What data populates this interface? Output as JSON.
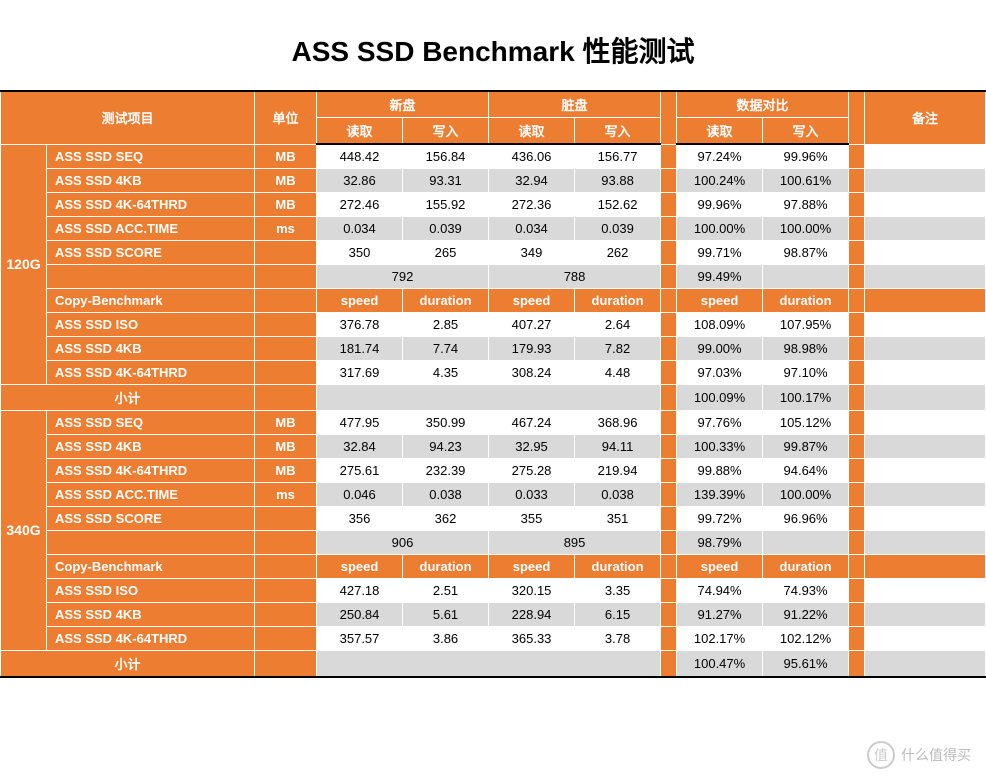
{
  "title": "ASS SSD Benchmark 性能测试",
  "colors": {
    "orange": "#ed7d31",
    "gray": "#d9d9d9",
    "white": "#ffffff",
    "black": "#000000"
  },
  "header": {
    "test_item": "测试项目",
    "unit": "单位",
    "new_disk": "新盘",
    "dirty_disk": "脏盘",
    "compare": "数据对比",
    "remark": "备注",
    "read": "读取",
    "write": "写入"
  },
  "sub_header": {
    "speed": "speed",
    "duration": "duration"
  },
  "labels": {
    "copy_benchmark": "Copy-Benchmark",
    "subtotal": "小计",
    "seq": "ASS SSD SEQ",
    "k4": "ASS SSD 4KB",
    "k4_64": "ASS SSD 4K-64THRD",
    "acc": "ASS SSD ACC.TIME",
    "score": "ASS SSD SCORE",
    "iso": "ASS SSD ISO",
    "unit_mb": "MB",
    "unit_ms": "ms"
  },
  "groups": [
    {
      "name": "120G",
      "perf": [
        {
          "label": "ASS SSD SEQ",
          "unit": "MB",
          "nr": "448.42",
          "nw": "156.84",
          "dr": "436.06",
          "dw": "156.77",
          "cr": "97.24%",
          "cw": "99.96%",
          "bg": "white"
        },
        {
          "label": "ASS SSD 4KB",
          "unit": "MB",
          "nr": "32.86",
          "nw": "93.31",
          "dr": "32.94",
          "dw": "93.88",
          "cr": "100.24%",
          "cw": "100.61%",
          "bg": "gray"
        },
        {
          "label": "ASS SSD 4K-64THRD",
          "unit": "MB",
          "nr": "272.46",
          "nw": "155.92",
          "dr": "272.36",
          "dw": "152.62",
          "cr": "99.96%",
          "cw": "97.88%",
          "bg": "white"
        },
        {
          "label": "ASS SSD ACC.TIME",
          "unit": "ms",
          "nr": "0.034",
          "nw": "0.039",
          "dr": "0.034",
          "dw": "0.039",
          "cr": "100.00%",
          "cw": "100.00%",
          "bg": "gray"
        },
        {
          "label": "ASS SSD SCORE",
          "unit": "",
          "nr": "350",
          "nw": "265",
          "dr": "349",
          "dw": "262",
          "cr": "99.71%",
          "cw": "98.87%",
          "bg": "white"
        }
      ],
      "total": {
        "new": "792",
        "dirty": "788",
        "cr": "99.49%",
        "cw": ""
      },
      "copy": [
        {
          "label": "ASS SSD ISO",
          "ns": "376.78",
          "nd": "2.85",
          "ds": "407.27",
          "dd": "2.64",
          "cs": "108.09%",
          "cd": "107.95%",
          "bg": "white"
        },
        {
          "label": "ASS SSD 4KB",
          "ns": "181.74",
          "nd": "7.74",
          "ds": "179.93",
          "dd": "7.82",
          "cs": "99.00%",
          "cd": "98.98%",
          "bg": "gray"
        },
        {
          "label": "ASS SSD 4K-64THRD",
          "ns": "317.69",
          "nd": "4.35",
          "ds": "308.24",
          "dd": "4.48",
          "cs": "97.03%",
          "cd": "97.10%",
          "bg": "white"
        }
      ],
      "subtotal": {
        "cs": "100.09%",
        "cd": "100.17%"
      }
    },
    {
      "name": "340G",
      "perf": [
        {
          "label": "ASS SSD SEQ",
          "unit": "MB",
          "nr": "477.95",
          "nw": "350.99",
          "dr": "467.24",
          "dw": "368.96",
          "cr": "97.76%",
          "cw": "105.12%",
          "bg": "white"
        },
        {
          "label": "ASS SSD 4KB",
          "unit": "MB",
          "nr": "32.84",
          "nw": "94.23",
          "dr": "32.95",
          "dw": "94.11",
          "cr": "100.33%",
          "cw": "99.87%",
          "bg": "gray"
        },
        {
          "label": "ASS SSD 4K-64THRD",
          "unit": "MB",
          "nr": "275.61",
          "nw": "232.39",
          "dr": "275.28",
          "dw": "219.94",
          "cr": "99.88%",
          "cw": "94.64%",
          "bg": "white"
        },
        {
          "label": "ASS SSD ACC.TIME",
          "unit": "ms",
          "nr": "0.046",
          "nw": "0.038",
          "dr": "0.033",
          "dw": "0.038",
          "cr": "139.39%",
          "cw": "100.00%",
          "bg": "gray"
        },
        {
          "label": "ASS SSD SCORE",
          "unit": "",
          "nr": "356",
          "nw": "362",
          "dr": "355",
          "dw": "351",
          "cr": "99.72%",
          "cw": "96.96%",
          "bg": "white"
        }
      ],
      "total": {
        "new": "906",
        "dirty": "895",
        "cr": "98.79%",
        "cw": ""
      },
      "copy": [
        {
          "label": "ASS SSD ISO",
          "ns": "427.18",
          "nd": "2.51",
          "ds": "320.15",
          "dd": "3.35",
          "cs": "74.94%",
          "cd": "74.93%",
          "bg": "white"
        },
        {
          "label": "ASS SSD 4KB",
          "ns": "250.84",
          "nd": "5.61",
          "ds": "228.94",
          "dd": "6.15",
          "cs": "91.27%",
          "cd": "91.22%",
          "bg": "gray"
        },
        {
          "label": "ASS SSD 4K-64THRD",
          "ns": "357.57",
          "nd": "3.86",
          "ds": "365.33",
          "dd": "3.78",
          "cs": "102.17%",
          "cd": "102.12%",
          "bg": "white"
        }
      ],
      "subtotal": {
        "cs": "100.47%",
        "cd": "95.61%"
      }
    }
  ],
  "watermark": "什么值得买"
}
